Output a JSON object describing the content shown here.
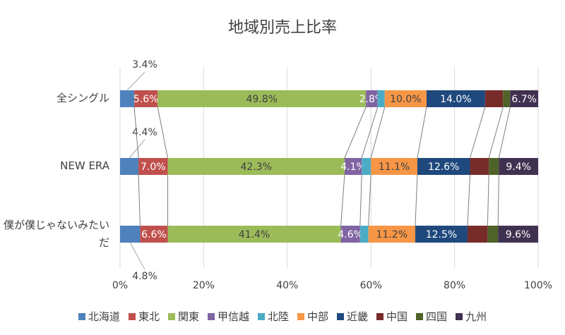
{
  "chart_data": {
    "type": "stacked_bar_horizontal",
    "title": "地域別売上比率",
    "categories": [
      "全シングル",
      "NEW ERA",
      "僕が僕じゃないみたいだ"
    ],
    "xlim": [
      0,
      100
    ],
    "xticks": [
      {
        "value": 0,
        "label": "0%"
      },
      {
        "value": 20,
        "label": "20%"
      },
      {
        "value": 40,
        "label": "40%"
      },
      {
        "value": 60,
        "label": "60%"
      },
      {
        "value": 80,
        "label": "80%"
      },
      {
        "value": 100,
        "label": "100%"
      }
    ],
    "grid": true,
    "legend": "bottom",
    "series": [
      {
        "name": "北海道",
        "color": "#4f81bd",
        "values": [
          3.4,
          4.4,
          4.8
        ],
        "value_labels": [
          "3.4%",
          "4.4%",
          "4.8%"
        ]
      },
      {
        "name": "東北",
        "color": "#c0504d",
        "values": [
          5.6,
          7.0,
          6.6
        ],
        "value_labels": [
          "5.6%",
          "7.0%",
          "6.6%"
        ]
      },
      {
        "name": "関東",
        "color": "#9bbb59",
        "values": [
          49.8,
          42.3,
          41.4
        ],
        "value_labels": [
          "49.8%",
          "42.3%",
          "41.4%"
        ]
      },
      {
        "name": "甲信越",
        "color": "#8064a2",
        "values": [
          2.8,
          4.1,
          4.6
        ],
        "value_labels": [
          "2.8%",
          "4.1%",
          "4.6%"
        ]
      },
      {
        "name": "北陸",
        "color": "#4bacc6",
        "values": [
          1.7,
          2.2,
          2.0
        ]
      },
      {
        "name": "中部",
        "color": "#f79646",
        "values": [
          10.0,
          11.1,
          11.2
        ],
        "value_labels": [
          "10.0%",
          "11.1%",
          "11.2%"
        ]
      },
      {
        "name": "近畿",
        "color": "#1f497d",
        "values": [
          14.0,
          12.6,
          12.5
        ],
        "value_labels": [
          "14.0%",
          "12.6%",
          "12.5%"
        ]
      },
      {
        "name": "中国",
        "color": "#772c2a",
        "values": [
          4.3,
          4.5,
          4.8
        ]
      },
      {
        "name": "四国",
        "color": "#4f6228",
        "values": [
          1.7,
          2.4,
          2.5
        ]
      },
      {
        "name": "九州",
        "color": "#403151",
        "values": [
          6.7,
          9.4,
          9.6
        ],
        "value_labels": [
          "6.7%",
          "9.4%",
          "9.6%"
        ]
      }
    ]
  }
}
